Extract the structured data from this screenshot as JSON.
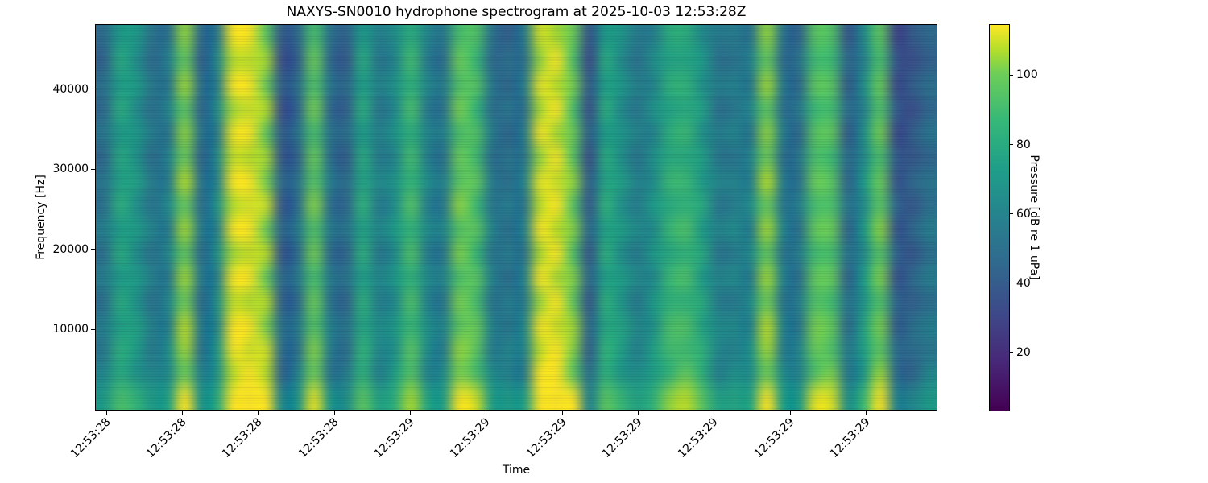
{
  "chart_data": {
    "type": "heatmap",
    "subtype": "spectrogram",
    "title": "NAXYS-SN0010 hydrophone spectrogram at 2025-10-03 12:53:28Z",
    "xlabel": "Time",
    "ylabel": "Frequency [Hz]",
    "colorbar_label": "Pressure [dB re 1 uPa]",
    "colormap": "viridis",
    "colormap_stops": [
      [
        0.0,
        68,
        1,
        84
      ],
      [
        0.125,
        72,
        40,
        120
      ],
      [
        0.25,
        62,
        73,
        137
      ],
      [
        0.375,
        49,
        104,
        142
      ],
      [
        0.5,
        38,
        130,
        142
      ],
      [
        0.625,
        31,
        158,
        137
      ],
      [
        0.75,
        53,
        183,
        121
      ],
      [
        0.875,
        110,
        206,
        88
      ],
      [
        0.9375,
        181,
        222,
        43
      ],
      [
        1.0,
        253,
        231,
        37
      ]
    ],
    "vmin": 3.5,
    "vmax": 114.5,
    "y_axis": {
      "min": 0,
      "max": 48000,
      "ticks": [
        10000,
        20000,
        30000,
        40000
      ]
    },
    "x_ticks": {
      "fractions": [
        0.0122,
        0.1025,
        0.1929,
        0.2832,
        0.3736,
        0.464,
        0.5543,
        0.6447,
        0.735,
        0.8254,
        0.9157
      ],
      "labels": [
        "12:53:28",
        "12:53:28",
        "12:53:28",
        "12:53:28",
        "12:53:29",
        "12:53:29",
        "12:53:29",
        "12:53:29",
        "12:53:29",
        "12:53:29",
        "12:53:29"
      ]
    },
    "colorbar_ticks": [
      20,
      40,
      60,
      80,
      100
    ],
    "time_bins": 52,
    "freq_bins": 16,
    "envelope_top_db": [
      46,
      76,
      68,
      50,
      55,
      100,
      45,
      58,
      110,
      112,
      102,
      36,
      45,
      96,
      48,
      42,
      76,
      55,
      64,
      86,
      58,
      52,
      96,
      90,
      50,
      46,
      52,
      108,
      110,
      96,
      36,
      76,
      66,
      54,
      62,
      78,
      80,
      68,
      52,
      55,
      56,
      100,
      50,
      48,
      92,
      92,
      42,
      60,
      95,
      34,
      36,
      45
    ],
    "envelope_bottom_db": [
      58,
      78,
      72,
      58,
      62,
      104,
      55,
      66,
      112,
      113,
      106,
      48,
      55,
      98,
      56,
      52,
      82,
      62,
      70,
      92,
      64,
      60,
      100,
      96,
      60,
      58,
      60,
      112,
      113,
      102,
      46,
      82,
      74,
      62,
      72,
      90,
      94,
      82,
      62,
      63,
      64,
      104,
      60,
      58,
      98,
      97,
      52,
      75,
      100,
      46,
      48,
      58
    ],
    "row_offsets_db": [
      2,
      -4,
      4,
      -3,
      5,
      -5,
      3,
      -2,
      6,
      -4,
      4,
      -6,
      3,
      -3,
      5,
      14
    ],
    "blob_phase": [
      0,
      1,
      2,
      0,
      1,
      2,
      0,
      1,
      2,
      0,
      1,
      2,
      0,
      1,
      2,
      0,
      1,
      2,
      0,
      1,
      2,
      0,
      1,
      2,
      0,
      1,
      2,
      0,
      1,
      2,
      0,
      1,
      2,
      0,
      1,
      2,
      0,
      1,
      2,
      0,
      1,
      2,
      0,
      1,
      2,
      0,
      1,
      2,
      0,
      1,
      2,
      0
    ]
  }
}
